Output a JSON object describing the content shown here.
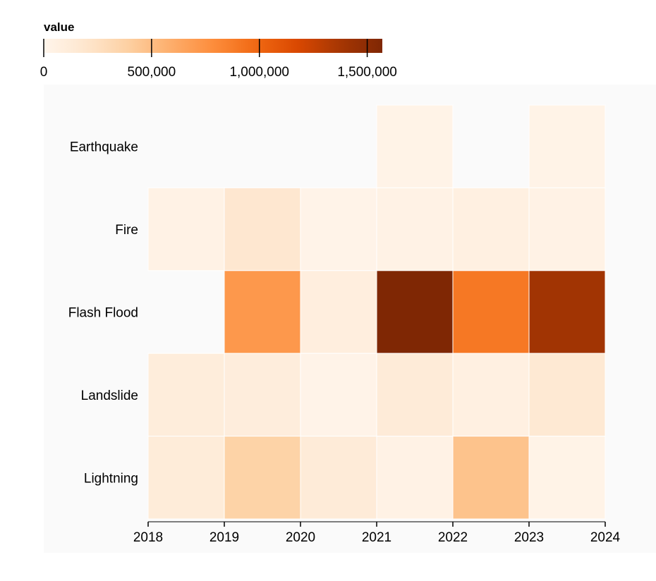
{
  "chart_data": {
    "type": "heatmap",
    "legend_title": "value",
    "legend_ticks": [
      0,
      500000,
      1000000,
      1500000
    ],
    "legend_tick_labels": [
      "0",
      "500,000",
      "1,000,000",
      "1,500,000"
    ],
    "color_domain": [
      0,
      1570000
    ],
    "color_scheme": "oranges",
    "x_tick_labels": [
      "2018",
      "2019",
      "2020",
      "2021",
      "2022",
      "2023",
      "2024"
    ],
    "x_bins": [
      2018,
      2019,
      2020,
      2021,
      2022,
      2023
    ],
    "categories": [
      "Earthquake",
      "Fire",
      "Flash Flood",
      "Landslide",
      "Lightning"
    ],
    "values": [
      [
        null,
        null,
        null,
        30000,
        null,
        30000
      ],
      [
        40000,
        180000,
        20000,
        40000,
        70000,
        40000
      ],
      [
        null,
        720000,
        90000,
        1570000,
        900000,
        1400000
      ],
      [
        110000,
        100000,
        20000,
        130000,
        70000,
        160000
      ],
      [
        120000,
        370000,
        130000,
        40000,
        470000,
        30000
      ]
    ]
  }
}
